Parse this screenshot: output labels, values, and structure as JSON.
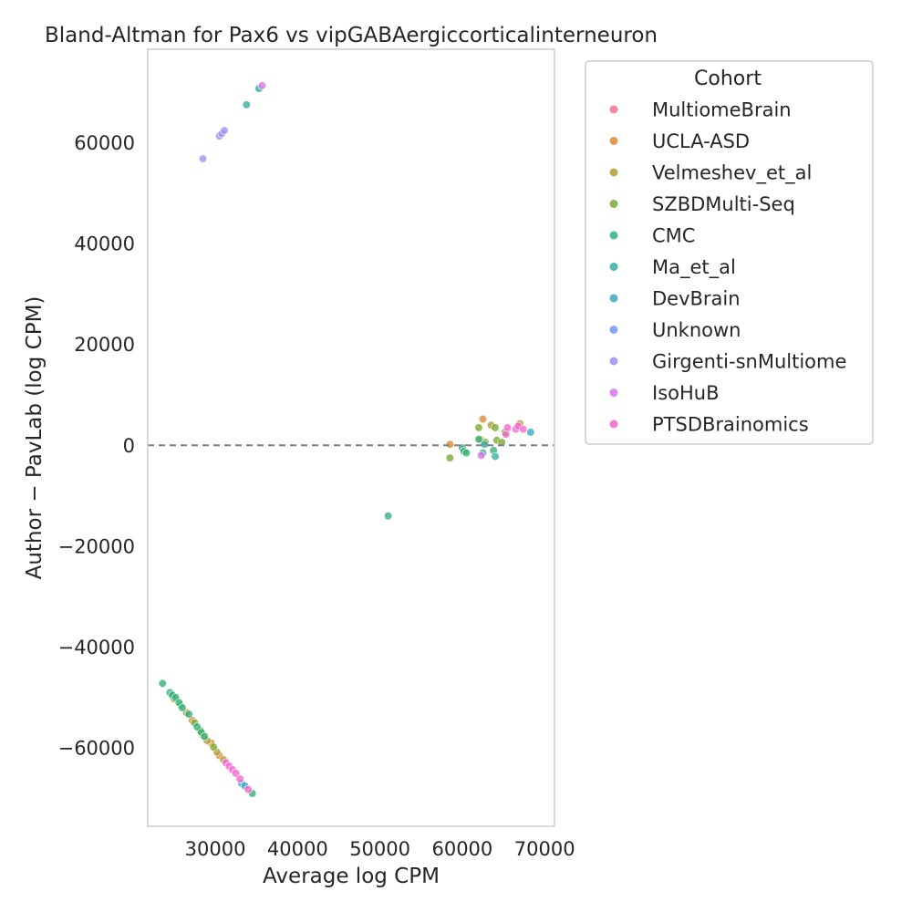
{
  "chart_data": {
    "type": "scatter",
    "title": "Bland-Altman for Pax6 vs vipGABAergiccorticalinterneuron",
    "xlabel": "Average log CPM",
    "ylabel": "Author − PavLab (log CPM)",
    "xlim": [
      21800,
      71200
    ],
    "ylim": [
      -75500,
      78500
    ],
    "xticks": [
      30000,
      40000,
      50000,
      60000,
      70000
    ],
    "xtick_labels": [
      "30000",
      "40000",
      "50000",
      "60000",
      "70000"
    ],
    "yticks": [
      -60000,
      -40000,
      -20000,
      0,
      20000,
      40000,
      60000
    ],
    "ytick_labels": [
      "−60000",
      "−40000",
      "−20000",
      "0",
      "20000",
      "40000",
      "60000"
    ],
    "grid": false,
    "reference_line_y": 0,
    "legend_title": "Cohort",
    "legend_placement": "outside-upper-right",
    "series": [
      {
        "name": "MultiomeBrain",
        "color": "#f77189",
        "points": []
      },
      {
        "name": "UCLA-ASD",
        "color": "#dc8932",
        "points": [
          [
            58500,
            200
          ],
          [
            62500,
            5200
          ],
          [
            27200,
            -54500
          ],
          [
            29500,
            -59000
          ],
          [
            30500,
            -61500
          ],
          [
            28500,
            -57500
          ]
        ]
      },
      {
        "name": "Velmeshev_et_al",
        "color": "#ae9d31",
        "points": [
          [
            67000,
            4300
          ],
          [
            62200,
            1200
          ],
          [
            63500,
            4000
          ],
          [
            29000,
            -58500
          ],
          [
            30200,
            -60800
          ],
          [
            31000,
            -62300
          ],
          [
            26500,
            -53000
          ]
        ]
      },
      {
        "name": "SZBDMulti-Seq",
        "color": "#77ab31",
        "points": [
          [
            58500,
            -2500
          ],
          [
            62000,
            3500
          ],
          [
            64000,
            3500
          ],
          [
            64200,
            1000
          ],
          [
            64800,
            600
          ],
          [
            62800,
            600
          ],
          [
            65200,
            2600
          ],
          [
            25000,
            -50200
          ],
          [
            25800,
            -51500
          ],
          [
            27500,
            -55000
          ],
          [
            28200,
            -56500
          ],
          [
            29800,
            -59800
          ]
        ]
      },
      {
        "name": "CMC",
        "color": "#33b07a",
        "points": [
          [
            51000,
            -14000
          ],
          [
            23600,
            -47200
          ],
          [
            60000,
            -500
          ],
          [
            60200,
            -1200
          ],
          [
            60500,
            -1500
          ],
          [
            62000,
            1200
          ],
          [
            62500,
            -1500
          ],
          [
            63800,
            -1000
          ],
          [
            24500,
            -49000
          ],
          [
            24800,
            -49500
          ],
          [
            25200,
            -50000
          ],
          [
            25600,
            -51000
          ],
          [
            26000,
            -52000
          ],
          [
            26800,
            -53300
          ],
          [
            27800,
            -55800
          ],
          [
            28300,
            -56900
          ],
          [
            28700,
            -57700
          ],
          [
            34500,
            -69000
          ]
        ]
      },
      {
        "name": "Ma_et_al",
        "color": "#36ada4",
        "points": [
          [
            33800,
            67500
          ],
          [
            35300,
            70700
          ],
          [
            64000,
            -2200
          ],
          [
            62700,
            200
          ]
        ]
      },
      {
        "name": "DevBrain",
        "color": "#38a9c5",
        "points": [
          [
            68300,
            2600
          ],
          [
            33200,
            -67000
          ],
          [
            33600,
            -67500
          ]
        ]
      },
      {
        "name": "Unknown",
        "color": "#6e9bf4",
        "points": []
      },
      {
        "name": "Girgenti-snMultiome",
        "color": "#a48cf4",
        "points": [
          [
            28500,
            56800
          ],
          [
            30500,
            61300
          ],
          [
            30800,
            61800
          ],
          [
            31100,
            62400
          ]
        ]
      },
      {
        "name": "IsoHuB",
        "color": "#dc6ff4",
        "points": [
          [
            35700,
            71300
          ],
          [
            62300,
            -2000
          ]
        ]
      },
      {
        "name": "PTSDBrainomics",
        "color": "#f565cc",
        "points": [
          [
            65300,
            2200
          ],
          [
            65500,
            3500
          ],
          [
            66500,
            3200
          ],
          [
            66800,
            3800
          ],
          [
            67400,
            3200
          ],
          [
            31300,
            -62900
          ],
          [
            31700,
            -63600
          ],
          [
            32100,
            -64300
          ],
          [
            32500,
            -65000
          ],
          [
            33000,
            -66100
          ],
          [
            34000,
            -68200
          ]
        ]
      }
    ]
  }
}
